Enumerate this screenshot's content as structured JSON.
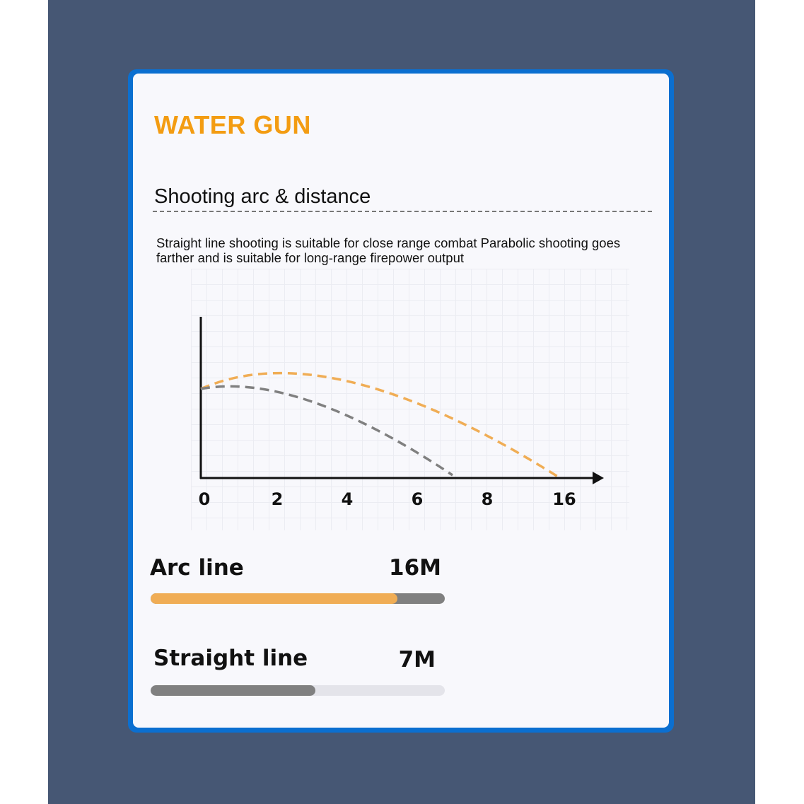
{
  "header": {
    "title": "WATER GUN",
    "subtitle": "Shooting arc & distance"
  },
  "description": "Straight line shooting is suitable for close range combat Parabolic shooting goes farther and is suitable for long-range firepower output",
  "diagram": {
    "x_ticks": [
      "0",
      "2",
      "4",
      "6",
      "8",
      "16"
    ],
    "colors": {
      "arc": "#f0ad55",
      "straight": "#808080",
      "axis": "#111111"
    }
  },
  "stats": [
    {
      "label": "Arc line",
      "value": "16M",
      "level_percent": 84,
      "fill_color": "#f0ad55",
      "track_color": "#808080"
    },
    {
      "label": "Straight line",
      "value": "7M",
      "level_percent": 56,
      "fill_color": "#808080",
      "track_color": "#e4e4ea"
    }
  ],
  "colors": {
    "background": "#465774",
    "frame": "#0b6fd0",
    "title": "#f39c12"
  }
}
